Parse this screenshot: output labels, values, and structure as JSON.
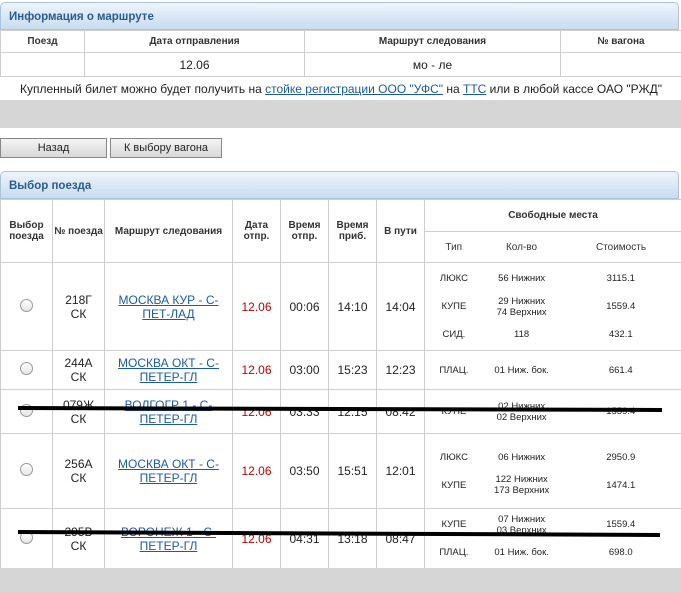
{
  "info": {
    "title": "Информация о маршруте",
    "headers": [
      "Поезд",
      "Дата отправления",
      "Маршрут следования",
      "№ вагона"
    ],
    "date": "12.06",
    "route": "мо - ле",
    "note": {
      "text1": "Купленный билет можно будет получить на ",
      "link1": "стойке регистрации ООО \"УФС\"",
      "text2": " на ",
      "link2": "ТТС",
      "text3": " или в любой кассе ОАО \"РЖД\""
    }
  },
  "buttons": [
    "Назад",
    "К выбору вагона"
  ],
  "trains": {
    "title": "Выбор поезда",
    "headers": [
      "Выбор поезда",
      "№ поезда",
      "Маршрут следования",
      "Дата отпр.",
      "Время отпр.",
      "Время приб.",
      "В пути",
      "Свободные места"
    ],
    "subheaders": [
      "Тип",
      "Кол-во",
      "Стоимость"
    ],
    "rows": [
      {
        "number": "218Г",
        "class": "СК",
        "route": "МОСКВА КУР - С-ПЕТ-ЛАД",
        "date": "12.06",
        "dep": "00:06",
        "arr": "14:10",
        "travel": "14:04",
        "seats": [
          {
            "type": "ЛЮКС",
            "count": [
              "56 Нижних"
            ],
            "price": "3115.1"
          },
          {
            "type": "КУПЕ",
            "count": [
              "29 Нижних",
              "74 Верхних"
            ],
            "price": "1559.4"
          },
          {
            "type": "СИД.",
            "count": [
              "118"
            ],
            "price": "432.1"
          }
        ]
      },
      {
        "number": "244А",
        "class": "СК",
        "route": "МОСКВА ОКТ - С-ПЕТЕР-ГЛ",
        "date": "12.06",
        "dep": "03:00",
        "arr": "15:23",
        "travel": "12:23",
        "seats": [
          {
            "type": "ПЛАЦ.",
            "count": [
              "01 Ниж. бок."
            ],
            "price": "661.4"
          }
        ]
      },
      {
        "number": "079Ж",
        "class": "СК",
        "route": "ВОЛГОГР 1 - С-ПЕТЕР-ГЛ",
        "date": "12.06",
        "dep": "03:33",
        "arr": "12:15",
        "travel": "08:42",
        "seats": [
          {
            "type": "КУПЕ",
            "count": [
              "02 Нижних",
              "02 Верхних"
            ],
            "price": "1559.4"
          }
        ]
      },
      {
        "number": "256А",
        "class": "СК",
        "route": "МОСКВА ОКТ - С-ПЕТЕР-ГЛ",
        "date": "12.06",
        "dep": "03:50",
        "arr": "15:51",
        "travel": "12:01",
        "seats": [
          {
            "type": "ЛЮКС",
            "count": [
              "06 Нижних"
            ],
            "price": "2950.9"
          },
          {
            "type": "КУПЕ",
            "count": [
              "122 Нижних",
              "173 Верхних"
            ],
            "price": "1474.1"
          }
        ]
      },
      {
        "number": "295В",
        "class": "СК",
        "route": "ВОРОНЕЖ 1 - С-ПЕТЕР-ГЛ",
        "date": "12.06",
        "dep": "04:31",
        "arr": "13:18",
        "travel": "08:47",
        "seats": [
          {
            "type": "КУПЕ",
            "count": [
              "07 Нижних",
              "03 Верхних"
            ],
            "price": "1559.4"
          },
          {
            "type": "ПЛАЦ.",
            "count": [
              "01 Ниж. бок."
            ],
            "price": "698.0"
          }
        ]
      }
    ]
  }
}
